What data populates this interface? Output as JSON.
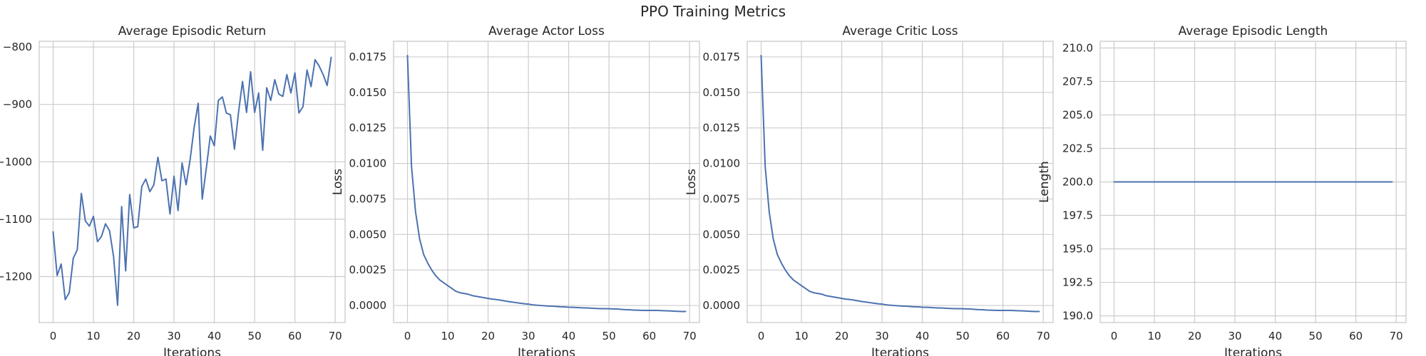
{
  "suptitle": "PPO Training Metrics",
  "colors": {
    "line": "#4c72b0",
    "grid": "#cccccc",
    "spine": "#cccccc",
    "text": "#262626",
    "background": "#ffffff"
  },
  "chart_data": [
    {
      "type": "line",
      "title": "Average Episodic Return",
      "xlabel": "Iterations",
      "ylabel": "",
      "xlim": [
        -3.45,
        72.45
      ],
      "ylim": [
        -1280,
        -790
      ],
      "xticks": [
        0,
        10,
        20,
        30,
        40,
        50,
        60,
        70
      ],
      "yticks": [
        -1200,
        -1100,
        -1000,
        -900,
        -800
      ],
      "ytick_labels": [
        "-1200",
        "-1100",
        "-1000",
        "-900",
        "-800"
      ],
      "grid": true,
      "series": [
        {
          "x": [
            0,
            1,
            2,
            3,
            4,
            5,
            6,
            7,
            8,
            9,
            10,
            11,
            12,
            13,
            14,
            15,
            16,
            17,
            18,
            19,
            20,
            21,
            22,
            23,
            24,
            25,
            26,
            27,
            28,
            29,
            30,
            31,
            32,
            33,
            34,
            35,
            36,
            37,
            38,
            39,
            40,
            41,
            42,
            43,
            44,
            45,
            46,
            47,
            48,
            49,
            50,
            51,
            52,
            53,
            54,
            55,
            56,
            57,
            58,
            59,
            60,
            61,
            62,
            63,
            64,
            65,
            66,
            67,
            68,
            69
          ],
          "y": [
            -1122,
            -1198,
            -1178,
            -1240,
            -1228,
            -1168,
            -1153,
            -1055,
            -1103,
            -1112,
            -1095,
            -1139,
            -1130,
            -1108,
            -1120,
            -1165,
            -1250,
            -1078,
            -1190,
            -1057,
            -1115,
            -1113,
            -1043,
            -1030,
            -1052,
            -1040,
            -992,
            -1033,
            -1030,
            -1091,
            -1025,
            -1085,
            -1002,
            -1040,
            -996,
            -940,
            -898,
            -1065,
            -1012,
            -955,
            -972,
            -893,
            -887,
            -915,
            -918,
            -978,
            -914,
            -860,
            -914,
            -843,
            -914,
            -880,
            -980,
            -871,
            -893,
            -857,
            -882,
            -886,
            -848,
            -880,
            -845,
            -915,
            -904,
            -840,
            -869,
            -822,
            -833,
            -848,
            -867,
            -818
          ]
        }
      ]
    },
    {
      "type": "line",
      "title": "Average Actor Loss",
      "xlabel": "Iterations",
      "ylabel": "Loss",
      "xlim": [
        -3.45,
        72.45
      ],
      "ylim": [
        -0.0012,
        0.0186
      ],
      "xticks": [
        0,
        10,
        20,
        30,
        40,
        50,
        60,
        70
      ],
      "yticks": [
        0.0,
        0.0025,
        0.005,
        0.0075,
        0.01,
        0.0125,
        0.015,
        0.0175
      ],
      "ytick_labels": [
        "0.0000",
        "0.0025",
        "0.0050",
        "0.0075",
        "0.0100",
        "0.0125",
        "0.0150",
        "0.0175"
      ],
      "grid": true,
      "series": [
        {
          "x": [
            0,
            1,
            2,
            3,
            4,
            5,
            6,
            7,
            8,
            9,
            10,
            11,
            12,
            13,
            14,
            15,
            16,
            17,
            18,
            19,
            20,
            21,
            22,
            23,
            24,
            25,
            26,
            27,
            28,
            29,
            30,
            31,
            32,
            33,
            34,
            35,
            36,
            37,
            38,
            39,
            40,
            41,
            42,
            43,
            44,
            45,
            46,
            47,
            48,
            49,
            50,
            51,
            52,
            53,
            54,
            55,
            56,
            57,
            58,
            59,
            60,
            61,
            62,
            63,
            64,
            65,
            66,
            67,
            68,
            69
          ],
          "y": [
            0.0176,
            0.0098,
            0.0066,
            0.0047,
            0.0036,
            0.003,
            0.0025,
            0.0021,
            0.0018,
            0.0016,
            0.0014,
            0.0012,
            0.001,
            0.0009,
            0.00085,
            0.0008,
            0.0007,
            0.00065,
            0.0006,
            0.00055,
            0.0005,
            0.00045,
            0.00042,
            0.00038,
            0.00033,
            0.00028,
            0.00024,
            0.0002,
            0.00016,
            0.00012,
            0.0001,
            5e-05,
            2e-05,
            0.0,
            -2e-05,
            -4e-05,
            -5e-05,
            -7e-05,
            -9e-05,
            -0.0001,
            -0.00012,
            -0.00013,
            -0.00014,
            -0.00016,
            -0.00017,
            -0.00018,
            -0.0002,
            -0.00021,
            -0.00022,
            -0.00022,
            -0.00023,
            -0.00024,
            -0.00025,
            -0.00027,
            -0.00029,
            -0.0003,
            -0.00032,
            -0.00033,
            -0.00034,
            -0.00035,
            -0.00035,
            -0.00035,
            -0.00035,
            -0.00036,
            -0.00037,
            -0.00038,
            -0.0004,
            -0.00041,
            -0.00042,
            -0.00042
          ]
        }
      ]
    },
    {
      "type": "line",
      "title": "Average Critic Loss",
      "xlabel": "Iterations",
      "ylabel": "Loss",
      "xlim": [
        -3.45,
        72.45
      ],
      "ylim": [
        -0.0012,
        0.0186
      ],
      "xticks": [
        0,
        10,
        20,
        30,
        40,
        50,
        60,
        70
      ],
      "yticks": [
        0.0,
        0.0025,
        0.005,
        0.0075,
        0.01,
        0.0125,
        0.015,
        0.0175
      ],
      "ytick_labels": [
        "0.0000",
        "0.0025",
        "0.0050",
        "0.0075",
        "0.0100",
        "0.0125",
        "0.0150",
        "0.0175"
      ],
      "grid": true,
      "series": [
        {
          "x": [
            0,
            1,
            2,
            3,
            4,
            5,
            6,
            7,
            8,
            9,
            10,
            11,
            12,
            13,
            14,
            15,
            16,
            17,
            18,
            19,
            20,
            21,
            22,
            23,
            24,
            25,
            26,
            27,
            28,
            29,
            30,
            31,
            32,
            33,
            34,
            35,
            36,
            37,
            38,
            39,
            40,
            41,
            42,
            43,
            44,
            45,
            46,
            47,
            48,
            49,
            50,
            51,
            52,
            53,
            54,
            55,
            56,
            57,
            58,
            59,
            60,
            61,
            62,
            63,
            64,
            65,
            66,
            67,
            68,
            69
          ],
          "y": [
            0.0176,
            0.0098,
            0.0066,
            0.0047,
            0.0036,
            0.003,
            0.0025,
            0.0021,
            0.0018,
            0.0016,
            0.0014,
            0.0012,
            0.001,
            0.0009,
            0.00085,
            0.0008,
            0.0007,
            0.00065,
            0.0006,
            0.00055,
            0.0005,
            0.00045,
            0.00042,
            0.00038,
            0.00033,
            0.00028,
            0.00024,
            0.0002,
            0.00016,
            0.00012,
            0.0001,
            5e-05,
            2e-05,
            0.0,
            -2e-05,
            -4e-05,
            -5e-05,
            -7e-05,
            -9e-05,
            -0.0001,
            -0.00012,
            -0.00013,
            -0.00014,
            -0.00016,
            -0.00017,
            -0.00018,
            -0.0002,
            -0.00021,
            -0.00022,
            -0.00022,
            -0.00023,
            -0.00024,
            -0.00025,
            -0.00027,
            -0.00029,
            -0.0003,
            -0.00032,
            -0.00033,
            -0.00034,
            -0.00035,
            -0.00035,
            -0.00035,
            -0.00035,
            -0.00036,
            -0.00037,
            -0.00038,
            -0.0004,
            -0.00041,
            -0.00042,
            -0.00042
          ]
        }
      ]
    },
    {
      "type": "line",
      "title": "Average Episodic Length",
      "xlabel": "Iterations",
      "ylabel": "Length",
      "xlim": [
        -3.45,
        72.45
      ],
      "ylim": [
        189.5,
        210.5
      ],
      "xticks": [
        0,
        10,
        20,
        30,
        40,
        50,
        60,
        70
      ],
      "yticks": [
        190.0,
        192.5,
        195.0,
        197.5,
        200.0,
        202.5,
        205.0,
        207.5,
        210.0
      ],
      "ytick_labels": [
        "190.0",
        "192.5",
        "195.0",
        "197.5",
        "200.0",
        "202.5",
        "205.0",
        "207.5",
        "210.0"
      ],
      "grid": true,
      "series": [
        {
          "x": [
            0,
            69
          ],
          "y": [
            200.0,
            200.0
          ]
        }
      ]
    }
  ]
}
